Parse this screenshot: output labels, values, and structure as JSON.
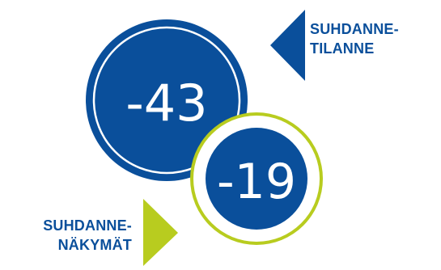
{
  "indicators": {
    "current": {
      "label_line1": "SUHDANNE-",
      "label_line2": "TILANNE",
      "value": "-43"
    },
    "outlook": {
      "label_line1": "SUHDANNE-",
      "label_line2": "NÄKYMÄT",
      "value": "-19"
    }
  },
  "colors": {
    "navy": "#0a4f9b",
    "lime": "#b8cc1f",
    "white": "#ffffff"
  },
  "icons": {
    "current_pointer": "left-triangle-icon",
    "outlook_pointer": "right-triangle-icon"
  }
}
